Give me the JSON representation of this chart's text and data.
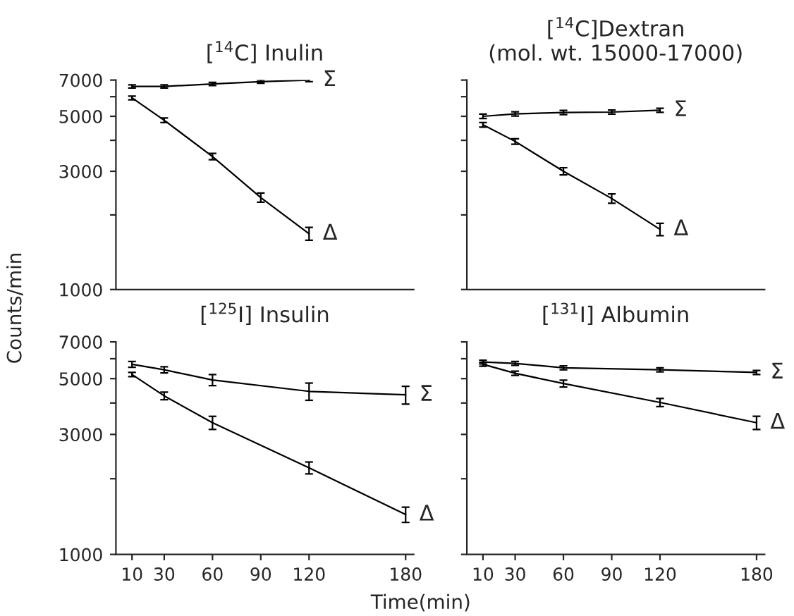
{
  "chart_data": [
    {
      "type": "line",
      "title": "[$^{14}$C] Inulin",
      "ylabel": "Counts/min",
      "x": [
        10,
        30,
        60,
        90,
        120
      ],
      "log": true,
      "xlim": [
        0,
        185
      ],
      "ylim": [
        1000,
        7000
      ],
      "yticks": [
        1000,
        {
          "value": 2000,
          "label": null
        },
        3000,
        {
          "value": 4000,
          "label": null
        },
        5000,
        {
          "value": 6000,
          "label": null
        },
        7000
      ],
      "tick_labels": "y",
      "marker": "none",
      "line_style": "solid",
      "grid": false,
      "legend": false,
      "series": [
        {
          "name": "Σ",
          "color": "#000000",
          "values": [
            6600,
            6600,
            6750,
            6900,
            7000
          ],
          "errors": [
            100,
            100,
            100,
            100,
            100
          ]
        },
        {
          "name": "Δ",
          "color": "#000000",
          "values": [
            5930,
            4820,
            3440,
            2350,
            1680
          ],
          "errors": [
            100,
            100,
            100,
            100,
            100
          ]
        }
      ]
    },
    {
      "type": "line",
      "title": "[$^{14}$C]Dextran\n(mol. wt. 15000-17000)",
      "x": [
        10,
        30,
        60,
        90,
        120
      ],
      "log": true,
      "xlim": [
        0,
        185
      ],
      "ylim": [
        1000,
        7000
      ],
      "yticks": [
        1000,
        {
          "value": 2000,
          "label": null
        },
        3000,
        {
          "value": 4000,
          "label": null
        },
        5000,
        {
          "value": 6000,
          "label": null
        },
        7000
      ],
      "tick_labels": false,
      "marker": "none",
      "line_style": "solid",
      "grid": false,
      "legend": false,
      "series": [
        {
          "name": "Σ",
          "color": "#000000",
          "values": [
            5000,
            5110,
            5180,
            5200,
            5290
          ],
          "errors": [
            100,
            100,
            100,
            100,
            100
          ]
        },
        {
          "name": "Δ",
          "color": "#000000",
          "values": [
            4620,
            3960,
            3000,
            2330,
            1750
          ],
          "errors": [
            100,
            100,
            100,
            100,
            100
          ]
        }
      ]
    },
    {
      "type": "line",
      "title": "[$^{125}$I] Insulin",
      "x": [
        10,
        30,
        60,
        120,
        180
      ],
      "log": true,
      "xlim": [
        0,
        185
      ],
      "ylim": [
        1000,
        7000
      ],
      "xticks": [
        10,
        30,
        60,
        90,
        120,
        180
      ],
      "yticks": [
        1000,
        {
          "value": 2000,
          "label": null
        },
        3000,
        {
          "value": 4000,
          "label": null
        },
        5000,
        {
          "value": 6000,
          "label": null
        },
        7000
      ],
      "marker": "none",
      "line_style": "solid",
      "grid": false,
      "legend": false,
      "series": [
        {
          "name": "Σ",
          "color": "#000000",
          "values": [
            5700,
            5420,
            4940,
            4450,
            4310
          ],
          "errors": [
            150,
            150,
            250,
            350,
            350
          ]
        },
        {
          "name": "Δ",
          "color": "#000000",
          "values": [
            5190,
            4270,
            3340,
            2210,
            1440
          ],
          "errors": [
            100,
            150,
            200,
            120,
            100
          ]
        }
      ]
    },
    {
      "type": "line",
      "title": "[$^{131}$I] Albumin",
      "xlabel": "Time(min)",
      "x": [
        10,
        30,
        60,
        120,
        180
      ],
      "log": true,
      "xlim": [
        0,
        185
      ],
      "ylim": [
        1000,
        7000
      ],
      "xticks": [
        10,
        30,
        60,
        90,
        120,
        180
      ],
      "yticks": [
        1000,
        {
          "value": 2000,
          "label": null
        },
        3000,
        {
          "value": 4000,
          "label": null
        },
        5000,
        {
          "value": 6000,
          "label": null
        },
        7000
      ],
      "tick_labels": "x",
      "marker": "none",
      "line_style": "solid",
      "grid": false,
      "legend": false,
      "series": [
        {
          "name": "Σ",
          "color": "#000000",
          "values": [
            5820,
            5750,
            5520,
            5420,
            5290
          ],
          "errors": [
            100,
            100,
            100,
            100,
            100
          ]
        },
        {
          "name": "Δ",
          "color": "#000000",
          "values": [
            5700,
            5250,
            4780,
            4020,
            3340
          ],
          "errors": [
            100,
            100,
            150,
            150,
            200
          ]
        }
      ]
    }
  ]
}
